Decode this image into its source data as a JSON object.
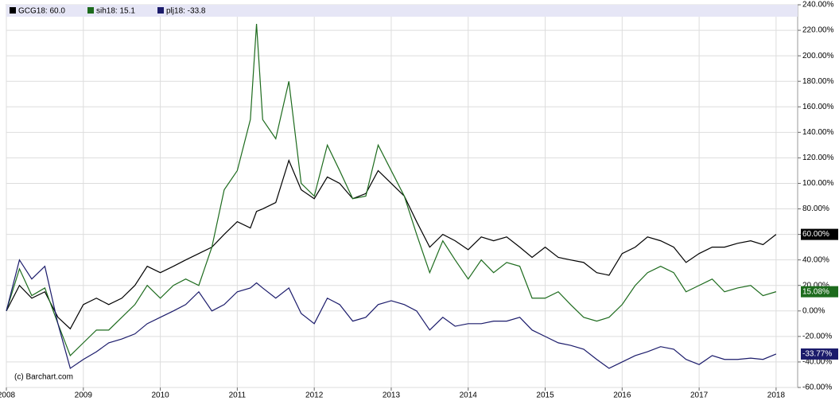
{
  "chart_data": {
    "type": "line",
    "credit": "(c) Barchart.com",
    "x": [
      2008,
      2008.17,
      2008.33,
      2008.5,
      2008.67,
      2008.83,
      2009,
      2009.17,
      2009.33,
      2009.5,
      2009.67,
      2009.83,
      2010,
      2010.17,
      2010.33,
      2010.5,
      2010.67,
      2010.83,
      2011,
      2011.17,
      2011.25,
      2011.33,
      2011.5,
      2011.67,
      2011.83,
      2012,
      2012.17,
      2012.33,
      2012.5,
      2012.67,
      2012.83,
      2013,
      2013.17,
      2013.33,
      2013.5,
      2013.67,
      2013.83,
      2014,
      2014.17,
      2014.33,
      2014.5,
      2014.67,
      2014.83,
      2015,
      2015.17,
      2015.33,
      2015.5,
      2015.67,
      2015.83,
      2016,
      2016.17,
      2016.33,
      2016.5,
      2016.67,
      2016.83,
      2017,
      2017.17,
      2017.33,
      2017.5,
      2017.67,
      2017.83,
      2018
    ],
    "series": [
      {
        "name": "GCG18: 60.0",
        "color": "#000000",
        "last_label": "60.00%",
        "values": [
          0,
          20,
          10,
          15,
          -5,
          -14,
          5,
          10,
          5,
          10,
          20,
          35,
          30,
          35,
          40,
          45,
          50,
          60,
          70,
          65,
          78,
          80,
          85,
          118,
          95,
          88,
          105,
          100,
          88,
          92,
          110,
          100,
          90,
          70,
          50,
          60,
          55,
          48,
          58,
          55,
          58,
          50,
          42,
          50,
          42,
          40,
          38,
          30,
          28,
          45,
          50,
          58,
          55,
          50,
          38,
          45,
          50,
          50,
          53,
          55,
          52,
          60
        ]
      },
      {
        "name": "sih18: 15.1",
        "color": "#1d6b1d",
        "last_label": "15.08%",
        "values": [
          0,
          33,
          12,
          18,
          -10,
          -35,
          -25,
          -15,
          -15,
          -5,
          5,
          20,
          10,
          20,
          25,
          20,
          50,
          95,
          110,
          150,
          225,
          150,
          135,
          180,
          100,
          90,
          130,
          110,
          88,
          90,
          130,
          110,
          90,
          60,
          30,
          55,
          40,
          25,
          40,
          30,
          38,
          35,
          10,
          10,
          15,
          5,
          -5,
          -8,
          -5,
          5,
          20,
          30,
          35,
          30,
          15,
          20,
          25,
          15,
          18,
          20,
          12,
          15.08
        ]
      },
      {
        "name": "plj18: -33.8",
        "color": "#1b1b6b",
        "last_label": "-33.77%",
        "values": [
          0,
          40,
          25,
          35,
          -10,
          -45,
          -38,
          -32,
          -25,
          -22,
          -18,
          -10,
          -5,
          0,
          5,
          15,
          0,
          5,
          15,
          18,
          22,
          18,
          10,
          18,
          -2,
          -10,
          10,
          5,
          -8,
          -5,
          5,
          8,
          5,
          0,
          -15,
          -5,
          -12,
          -10,
          -10,
          -8,
          -8,
          -5,
          -15,
          -20,
          -25,
          -27,
          -30,
          -38,
          -45,
          -40,
          -35,
          -32,
          -28,
          -30,
          -38,
          -42,
          -35,
          -38,
          -38,
          -37,
          -38,
          -33.77
        ]
      }
    ],
    "xlim": [
      2008,
      2018.28
    ],
    "xticks": [
      2008,
      2009,
      2010,
      2011,
      2012,
      2013,
      2014,
      2015,
      2016,
      2017,
      2018
    ],
    "ylim": [
      -60,
      240
    ],
    "yticks": [
      {
        "value": -60,
        "label": "-60.00%"
      },
      {
        "value": -40,
        "label": "-40.00%"
      },
      {
        "value": -20,
        "label": "-20.00%"
      },
      {
        "value": 0,
        "label": "0.00%"
      },
      {
        "value": 20,
        "label": "20.00%"
      },
      {
        "value": 40,
        "label": "40.00%"
      },
      {
        "value": 60,
        "label": "60.00%"
      },
      {
        "value": 80,
        "label": "80.00%"
      },
      {
        "value": 100,
        "label": "100.00%"
      },
      {
        "value": 120,
        "label": "120.00%"
      },
      {
        "value": 140,
        "label": "140.00%"
      },
      {
        "value": 160,
        "label": "160.00%"
      },
      {
        "value": 180,
        "label": "180.00%"
      },
      {
        "value": 200,
        "label": "200.00%"
      },
      {
        "value": 220,
        "label": "220.00%"
      },
      {
        "value": 240,
        "label": "240.00%"
      }
    ],
    "grid": true,
    "legend": "top"
  }
}
